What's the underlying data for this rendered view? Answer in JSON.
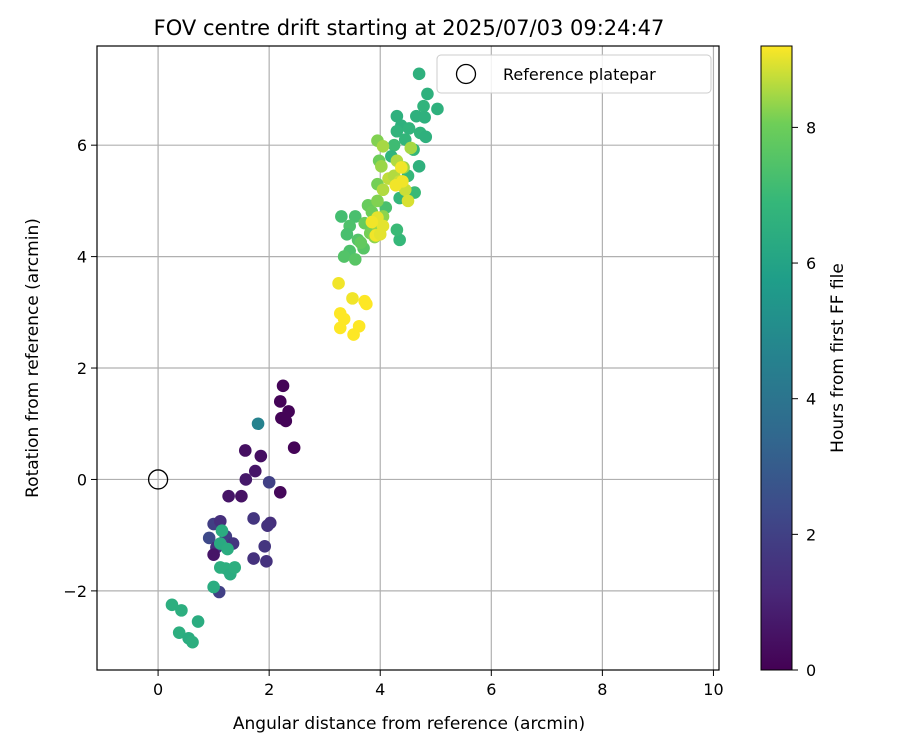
{
  "chart_data": {
    "type": "scatter",
    "title": "FOV centre drift starting at 2025/07/03 09:24:47",
    "xlabel": "Angular distance from reference (arcmin)",
    "ylabel": "Rotation from reference (arcmin)",
    "xlim": [
      -1.1,
      10.1
    ],
    "ylim": [
      -3.42,
      7.78
    ],
    "xticks": [
      0,
      2,
      4,
      6,
      8,
      10
    ],
    "yticks": [
      -2,
      0,
      2,
      4,
      6
    ],
    "grid": true,
    "colormap": "viridis",
    "colorbar": {
      "label": "Hours from first FF file",
      "range": [
        0,
        9.2
      ],
      "ticks": [
        0,
        2,
        4,
        6,
        8
      ]
    },
    "legend": {
      "position": "top-right",
      "label": "Reference platepar"
    },
    "reference_point": {
      "x": 0,
      "y": 0
    },
    "points": [
      {
        "x": 2.25,
        "y": 1.68,
        "c": 0.1
      },
      {
        "x": 2.2,
        "y": 1.4,
        "c": 0.1
      },
      {
        "x": 2.35,
        "y": 1.22,
        "c": 0.1
      },
      {
        "x": 2.22,
        "y": 1.1,
        "c": 0.1
      },
      {
        "x": 2.3,
        "y": 1.05,
        "c": 0.1
      },
      {
        "x": 2.45,
        "y": 0.57,
        "c": 0.1
      },
      {
        "x": 2.2,
        "y": -0.23,
        "c": 0.2
      },
      {
        "x": 1.57,
        "y": 0.52,
        "c": 0.4
      },
      {
        "x": 1.85,
        "y": 0.42,
        "c": 0.4
      },
      {
        "x": 1.75,
        "y": 0.15,
        "c": 0.6
      },
      {
        "x": 1.58,
        "y": 0.0,
        "c": 0.7
      },
      {
        "x": 1.27,
        "y": -0.3,
        "c": 0.6
      },
      {
        "x": 1.5,
        "y": -0.3,
        "c": 0.5
      },
      {
        "x": 2.0,
        "y": -0.05,
        "c": 2.0
      },
      {
        "x": 1.72,
        "y": -0.7,
        "c": 1.6
      },
      {
        "x": 2.02,
        "y": -0.78,
        "c": 1.4
      },
      {
        "x": 1.97,
        "y": -0.83,
        "c": 1.5
      },
      {
        "x": 1.92,
        "y": -1.2,
        "c": 1.6
      },
      {
        "x": 1.95,
        "y": -1.47,
        "c": 1.5
      },
      {
        "x": 1.72,
        "y": -1.42,
        "c": 1.5
      },
      {
        "x": 1.0,
        "y": -0.8,
        "c": 1.9
      },
      {
        "x": 1.12,
        "y": -0.75,
        "c": 1.4
      },
      {
        "x": 0.92,
        "y": -1.05,
        "c": 2.3
      },
      {
        "x": 1.22,
        "y": -1.02,
        "c": 1.9
      },
      {
        "x": 1.35,
        "y": -1.15,
        "c": 1.6
      },
      {
        "x": 1.05,
        "y": -1.22,
        "c": 1.4
      },
      {
        "x": 1.0,
        "y": -1.35,
        "c": 0.6
      },
      {
        "x": 1.1,
        "y": -2.02,
        "c": 2.0
      },
      {
        "x": 1.8,
        "y": 1.0,
        "c": 4.6
      },
      {
        "x": 1.15,
        "y": -0.92,
        "c": 6.4
      },
      {
        "x": 1.12,
        "y": -1.15,
        "c": 6.3
      },
      {
        "x": 1.25,
        "y": -1.25,
        "c": 6.4
      },
      {
        "x": 1.12,
        "y": -1.58,
        "c": 6.5
      },
      {
        "x": 1.22,
        "y": -1.6,
        "c": 6.5
      },
      {
        "x": 1.3,
        "y": -1.7,
        "c": 6.4
      },
      {
        "x": 1.38,
        "y": -1.58,
        "c": 6.5
      },
      {
        "x": 1.0,
        "y": -1.93,
        "c": 6.4
      },
      {
        "x": 0.25,
        "y": -2.25,
        "c": 6.5
      },
      {
        "x": 0.42,
        "y": -2.35,
        "c": 6.5
      },
      {
        "x": 0.72,
        "y": -2.55,
        "c": 6.4
      },
      {
        "x": 0.38,
        "y": -2.75,
        "c": 6.5
      },
      {
        "x": 0.55,
        "y": -2.85,
        "c": 6.4
      },
      {
        "x": 0.62,
        "y": -2.92,
        "c": 6.5
      },
      {
        "x": 4.7,
        "y": 7.28,
        "c": 6.6
      },
      {
        "x": 4.85,
        "y": 6.92,
        "c": 6.6
      },
      {
        "x": 4.78,
        "y": 6.7,
        "c": 6.7
      },
      {
        "x": 5.03,
        "y": 6.65,
        "c": 6.6
      },
      {
        "x": 4.3,
        "y": 6.52,
        "c": 6.6
      },
      {
        "x": 4.65,
        "y": 6.52,
        "c": 6.6
      },
      {
        "x": 4.8,
        "y": 6.5,
        "c": 6.6
      },
      {
        "x": 4.38,
        "y": 6.35,
        "c": 6.6
      },
      {
        "x": 4.52,
        "y": 6.3,
        "c": 6.7
      },
      {
        "x": 4.3,
        "y": 6.25,
        "c": 6.7
      },
      {
        "x": 4.72,
        "y": 6.22,
        "c": 6.7
      },
      {
        "x": 4.82,
        "y": 6.15,
        "c": 6.6
      },
      {
        "x": 4.45,
        "y": 6.1,
        "c": 6.8
      },
      {
        "x": 4.25,
        "y": 6.0,
        "c": 7.1
      },
      {
        "x": 4.6,
        "y": 5.92,
        "c": 6.8
      },
      {
        "x": 4.2,
        "y": 5.8,
        "c": 6.7
      },
      {
        "x": 4.7,
        "y": 5.62,
        "c": 6.6
      },
      {
        "x": 4.5,
        "y": 5.45,
        "c": 6.9
      },
      {
        "x": 4.62,
        "y": 5.15,
        "c": 7.0
      },
      {
        "x": 4.35,
        "y": 5.05,
        "c": 6.8
      },
      {
        "x": 4.35,
        "y": 4.3,
        "c": 6.9
      },
      {
        "x": 4.3,
        "y": 4.48,
        "c": 7.0
      },
      {
        "x": 4.1,
        "y": 4.88,
        "c": 7.3
      },
      {
        "x": 3.3,
        "y": 4.72,
        "c": 7.2
      },
      {
        "x": 3.55,
        "y": 4.72,
        "c": 7.3
      },
      {
        "x": 3.45,
        "y": 4.55,
        "c": 7.4
      },
      {
        "x": 3.4,
        "y": 4.4,
        "c": 7.3
      },
      {
        "x": 3.6,
        "y": 4.3,
        "c": 7.5
      },
      {
        "x": 3.7,
        "y": 4.15,
        "c": 7.6
      },
      {
        "x": 3.45,
        "y": 4.1,
        "c": 7.4
      },
      {
        "x": 3.35,
        "y": 4.0,
        "c": 7.5
      },
      {
        "x": 3.55,
        "y": 3.95,
        "c": 7.6
      },
      {
        "x": 3.78,
        "y": 4.92,
        "c": 7.9
      },
      {
        "x": 3.85,
        "y": 4.8,
        "c": 8.0
      },
      {
        "x": 3.72,
        "y": 4.6,
        "c": 7.9
      },
      {
        "x": 3.95,
        "y": 5.0,
        "c": 8.2
      },
      {
        "x": 4.05,
        "y": 4.72,
        "c": 8.3
      },
      {
        "x": 3.82,
        "y": 4.42,
        "c": 8.1
      },
      {
        "x": 3.9,
        "y": 4.35,
        "c": 8.3
      },
      {
        "x": 3.65,
        "y": 4.25,
        "c": 7.8
      },
      {
        "x": 3.95,
        "y": 4.55,
        "c": 8.4
      },
      {
        "x": 3.95,
        "y": 6.08,
        "c": 8.2
      },
      {
        "x": 4.05,
        "y": 5.98,
        "c": 8.5
      },
      {
        "x": 3.98,
        "y": 5.72,
        "c": 8.0
      },
      {
        "x": 4.02,
        "y": 5.62,
        "c": 8.4
      },
      {
        "x": 4.3,
        "y": 5.72,
        "c": 8.6
      },
      {
        "x": 4.42,
        "y": 5.6,
        "c": 8.4
      },
      {
        "x": 3.95,
        "y": 5.3,
        "c": 8.1
      },
      {
        "x": 4.05,
        "y": 5.2,
        "c": 8.6
      },
      {
        "x": 4.15,
        "y": 5.4,
        "c": 8.7
      },
      {
        "x": 4.25,
        "y": 5.45,
        "c": 8.6
      },
      {
        "x": 4.35,
        "y": 5.35,
        "c": 8.8
      },
      {
        "x": 4.45,
        "y": 5.2,
        "c": 8.8
      },
      {
        "x": 4.5,
        "y": 5.0,
        "c": 8.9
      },
      {
        "x": 4.55,
        "y": 5.95,
        "c": 8.5
      },
      {
        "x": 4.05,
        "y": 4.55,
        "c": 9.0
      },
      {
        "x": 3.95,
        "y": 4.7,
        "c": 9.0
      },
      {
        "x": 3.85,
        "y": 4.62,
        "c": 9.1
      },
      {
        "x": 3.92,
        "y": 4.38,
        "c": 9.1
      },
      {
        "x": 4.0,
        "y": 4.4,
        "c": 9.0
      },
      {
        "x": 4.38,
        "y": 5.6,
        "c": 9.1
      },
      {
        "x": 4.4,
        "y": 5.35,
        "c": 9.1
      },
      {
        "x": 4.28,
        "y": 5.28,
        "c": 9.1
      },
      {
        "x": 3.25,
        "y": 3.52,
        "c": 9.1
      },
      {
        "x": 3.5,
        "y": 3.25,
        "c": 9.1
      },
      {
        "x": 3.72,
        "y": 3.2,
        "c": 9.2
      },
      {
        "x": 3.75,
        "y": 3.15,
        "c": 9.2
      },
      {
        "x": 3.28,
        "y": 2.98,
        "c": 9.2
      },
      {
        "x": 3.35,
        "y": 2.88,
        "c": 9.2
      },
      {
        "x": 3.28,
        "y": 2.72,
        "c": 9.2
      },
      {
        "x": 3.62,
        "y": 2.75,
        "c": 9.2
      },
      {
        "x": 3.52,
        "y": 2.6,
        "c": 9.2
      }
    ]
  }
}
